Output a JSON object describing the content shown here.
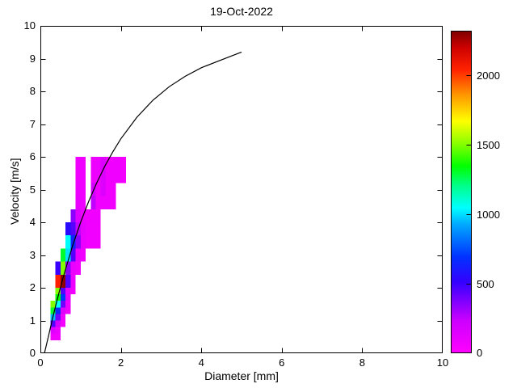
{
  "figure": {
    "title": "19-Oct-2022",
    "xlabel": "Diameter [mm]",
    "ylabel": "Velocity [m/s]"
  },
  "chart_data": {
    "type": "heatmap",
    "title": "19-Oct-2022",
    "xlabel": "Diameter [mm]",
    "ylabel": "Velocity [m/s]",
    "xlim": [
      0,
      10
    ],
    "ylim": [
      0,
      10
    ],
    "x_ticks": [
      0,
      2,
      4,
      6,
      8,
      10
    ],
    "y_ticks": [
      0,
      1,
      2,
      3,
      4,
      5,
      6,
      7,
      8,
      9,
      10
    ],
    "grid": false,
    "colorbar": {
      "min": 0,
      "max": 2320,
      "ticks": [
        0,
        500,
        1000,
        1500,
        2000
      ],
      "colormap": [
        [
          0.0,
          "#ff00ff"
        ],
        [
          0.1,
          "#cc00ff"
        ],
        [
          0.22,
          "#3300ff"
        ],
        [
          0.3,
          "#0033ff"
        ],
        [
          0.4,
          "#00aaff"
        ],
        [
          0.45,
          "#00ffff"
        ],
        [
          0.52,
          "#00ff88"
        ],
        [
          0.58,
          "#00ff00"
        ],
        [
          0.65,
          "#88ff00"
        ],
        [
          0.72,
          "#ffff00"
        ],
        [
          0.8,
          "#ff9900"
        ],
        [
          0.88,
          "#ff2200"
        ],
        [
          0.95,
          "#cc0000"
        ],
        [
          1.0,
          "#7f0000"
        ]
      ]
    },
    "curve": {
      "name": "raindrop-terminal-velocity-curve",
      "color": "#000000",
      "points": [
        [
          0.1,
          0.0
        ],
        [
          0.2,
          0.52
        ],
        [
          0.3,
          1.05
        ],
        [
          0.4,
          1.55
        ],
        [
          0.5,
          2.02
        ],
        [
          0.6,
          2.46
        ],
        [
          0.8,
          3.28
        ],
        [
          1.0,
          4.0
        ],
        [
          1.2,
          4.64
        ],
        [
          1.4,
          5.2
        ],
        [
          1.6,
          5.71
        ],
        [
          1.8,
          6.15
        ],
        [
          2.0,
          6.55
        ],
        [
          2.4,
          7.21
        ],
        [
          2.8,
          7.73
        ],
        [
          3.2,
          8.14
        ],
        [
          3.6,
          8.46
        ],
        [
          4.0,
          8.72
        ],
        [
          4.5,
          8.96
        ],
        [
          5.0,
          9.2
        ]
      ]
    },
    "cells_format": [
      "d_min_mm",
      "d_max_mm",
      "v_min_ms",
      "v_max_ms",
      "count"
    ],
    "cells": [
      [
        0.25,
        0.5,
        0.4,
        0.6,
        60
      ],
      [
        0.25,
        0.375,
        0.6,
        0.8,
        150
      ],
      [
        0.375,
        0.5,
        0.6,
        0.8,
        80
      ],
      [
        0.25,
        0.375,
        0.8,
        1.0,
        450
      ],
      [
        0.375,
        0.5,
        0.8,
        1.0,
        200
      ],
      [
        0.5,
        0.625,
        0.8,
        1.0,
        50
      ],
      [
        0.25,
        0.375,
        1.0,
        1.2,
        950
      ],
      [
        0.375,
        0.5,
        1.0,
        1.2,
        400
      ],
      [
        0.5,
        0.625,
        1.0,
        1.2,
        60
      ],
      [
        0.25,
        0.375,
        1.2,
        1.4,
        1300
      ],
      [
        0.375,
        0.5,
        1.2,
        1.4,
        650
      ],
      [
        0.5,
        0.625,
        1.2,
        1.4,
        150
      ],
      [
        0.625,
        0.75,
        1.2,
        1.4,
        60
      ],
      [
        0.25,
        0.375,
        1.4,
        1.6,
        1500
      ],
      [
        0.375,
        0.5,
        1.4,
        1.6,
        1050
      ],
      [
        0.5,
        0.625,
        1.4,
        1.6,
        400
      ],
      [
        0.625,
        0.75,
        1.4,
        1.6,
        70
      ],
      [
        0.375,
        0.5,
        1.6,
        1.8,
        1350
      ],
      [
        0.5,
        0.625,
        1.6,
        1.8,
        700
      ],
      [
        0.625,
        0.75,
        1.6,
        1.8,
        120
      ],
      [
        0.375,
        0.5,
        1.8,
        2.0,
        1500
      ],
      [
        0.5,
        0.625,
        1.8,
        2.0,
        450
      ],
      [
        0.625,
        0.75,
        1.8,
        2.0,
        120
      ],
      [
        0.75,
        0.875,
        1.8,
        2.0,
        60
      ],
      [
        0.375,
        0.5,
        2.0,
        2.4,
        2050
      ],
      [
        0.5,
        0.625,
        2.0,
        2.4,
        2300
      ],
      [
        0.625,
        0.75,
        2.0,
        2.4,
        450
      ],
      [
        0.75,
        0.875,
        2.0,
        2.4,
        80
      ],
      [
        0.375,
        0.5,
        2.4,
        2.8,
        500
      ],
      [
        0.5,
        0.625,
        2.4,
        2.8,
        1500
      ],
      [
        0.625,
        0.75,
        2.4,
        2.8,
        350
      ],
      [
        0.75,
        0.875,
        2.4,
        2.8,
        100
      ],
      [
        0.875,
        1.0,
        2.4,
        2.8,
        60
      ],
      [
        0.5,
        0.625,
        2.8,
        3.2,
        1300
      ],
      [
        0.625,
        0.75,
        2.8,
        3.2,
        1000
      ],
      [
        0.75,
        0.875,
        2.8,
        3.2,
        450
      ],
      [
        0.875,
        1.0,
        2.8,
        3.2,
        90
      ],
      [
        1.0,
        1.125,
        2.8,
        3.2,
        60
      ],
      [
        0.625,
        0.75,
        3.2,
        3.6,
        1050
      ],
      [
        0.75,
        0.875,
        3.2,
        3.6,
        650
      ],
      [
        0.875,
        1.0,
        3.2,
        3.6,
        350
      ],
      [
        1.0,
        1.125,
        3.2,
        3.6,
        90
      ],
      [
        1.125,
        1.25,
        3.2,
        3.6,
        60
      ],
      [
        1.25,
        1.5,
        3.2,
        3.6,
        60
      ],
      [
        0.625,
        0.75,
        3.6,
        4.0,
        550
      ],
      [
        0.75,
        0.875,
        3.6,
        4.0,
        450
      ],
      [
        0.875,
        1.0,
        3.6,
        4.0,
        250
      ],
      [
        1.0,
        1.125,
        3.6,
        4.0,
        120
      ],
      [
        1.125,
        1.25,
        3.6,
        4.0,
        70
      ],
      [
        1.25,
        1.5,
        3.6,
        4.0,
        60
      ],
      [
        0.75,
        0.875,
        4.0,
        4.4,
        350
      ],
      [
        0.875,
        1.0,
        4.0,
        4.4,
        150
      ],
      [
        1.0,
        1.125,
        4.0,
        4.4,
        80
      ],
      [
        1.125,
        1.25,
        4.0,
        4.4,
        60
      ],
      [
        1.25,
        1.5,
        4.0,
        4.4,
        70
      ],
      [
        0.875,
        1.0,
        4.4,
        4.8,
        100
      ],
      [
        1.0,
        1.125,
        4.4,
        4.8,
        70
      ],
      [
        1.25,
        1.375,
        4.4,
        4.8,
        250
      ],
      [
        1.375,
        1.5,
        4.4,
        4.8,
        60
      ],
      [
        1.5,
        1.75,
        4.4,
        4.8,
        70
      ],
      [
        1.75,
        1.875,
        4.4,
        4.8,
        60
      ],
      [
        0.875,
        1.0,
        4.8,
        5.2,
        80
      ],
      [
        1.0,
        1.125,
        4.8,
        5.2,
        60
      ],
      [
        1.25,
        1.375,
        4.8,
        5.2,
        200
      ],
      [
        1.375,
        1.5,
        4.8,
        5.2,
        60
      ],
      [
        1.5,
        1.625,
        4.8,
        5.2,
        150
      ],
      [
        1.625,
        1.875,
        4.8,
        5.2,
        60
      ],
      [
        0.875,
        1.125,
        5.2,
        6.0,
        70
      ],
      [
        1.25,
        1.5,
        5.2,
        6.0,
        80
      ],
      [
        1.5,
        1.625,
        5.2,
        6.0,
        150
      ],
      [
        1.625,
        1.75,
        5.2,
        6.0,
        60
      ],
      [
        1.75,
        2.0,
        5.2,
        6.0,
        70
      ],
      [
        2.0,
        2.125,
        5.2,
        6.0,
        50
      ]
    ]
  }
}
